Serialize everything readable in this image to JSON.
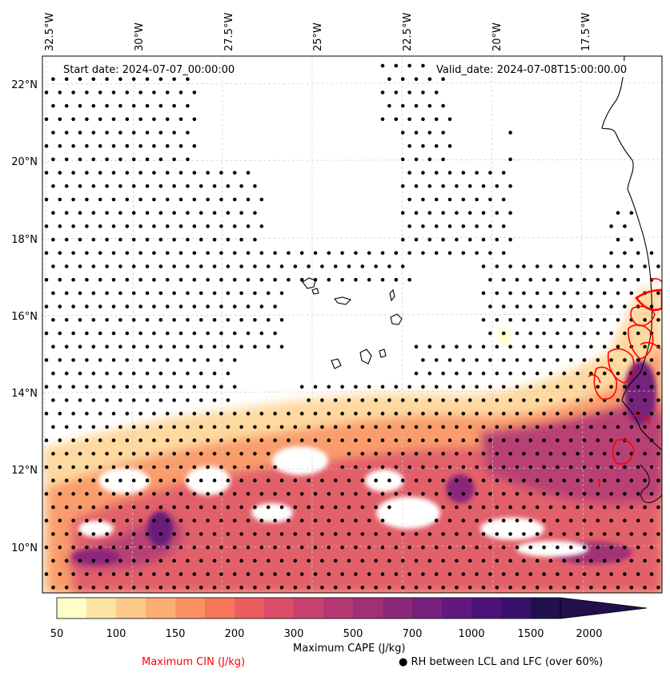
{
  "header": {
    "start_date": "Start date: 2024-07-07_00:00:00",
    "valid_date": "Valid_date: 2024-07-08T15:00:00.00"
  },
  "axes": {
    "lon_labels": [
      "32.5°W",
      "30°W",
      "27.5°W",
      "25°W",
      "22.5°W",
      "20°W",
      "17.5°W"
    ],
    "lat_labels": [
      "22°N",
      "20°N",
      "18°N",
      "16°N",
      "14°N",
      "12°N",
      "10°N"
    ]
  },
  "colorbar": {
    "label": "Maximum CAPE (J/kg)",
    "ticks": [
      "50",
      "100",
      "150",
      "200",
      "300",
      "500",
      "700",
      "1000",
      "1500",
      "2000"
    ],
    "colors": [
      "#fffec8",
      "#fee4a4",
      "#fdc98a",
      "#fdad73",
      "#fb9163",
      "#f6765c",
      "#ec5e5e",
      "#db4d68",
      "#c9426f",
      "#b53873",
      "#a03076",
      "#8c2879",
      "#77217c",
      "#62197e",
      "#4c137a",
      "#38116d",
      "#22104d"
    ]
  },
  "legend": {
    "cin": "Maximum CIN (J/kg)",
    "rh": "RH between LCL and LFC (over 60%)",
    "rh_marker": "●",
    "cin_color": "#ff0000"
  }
}
